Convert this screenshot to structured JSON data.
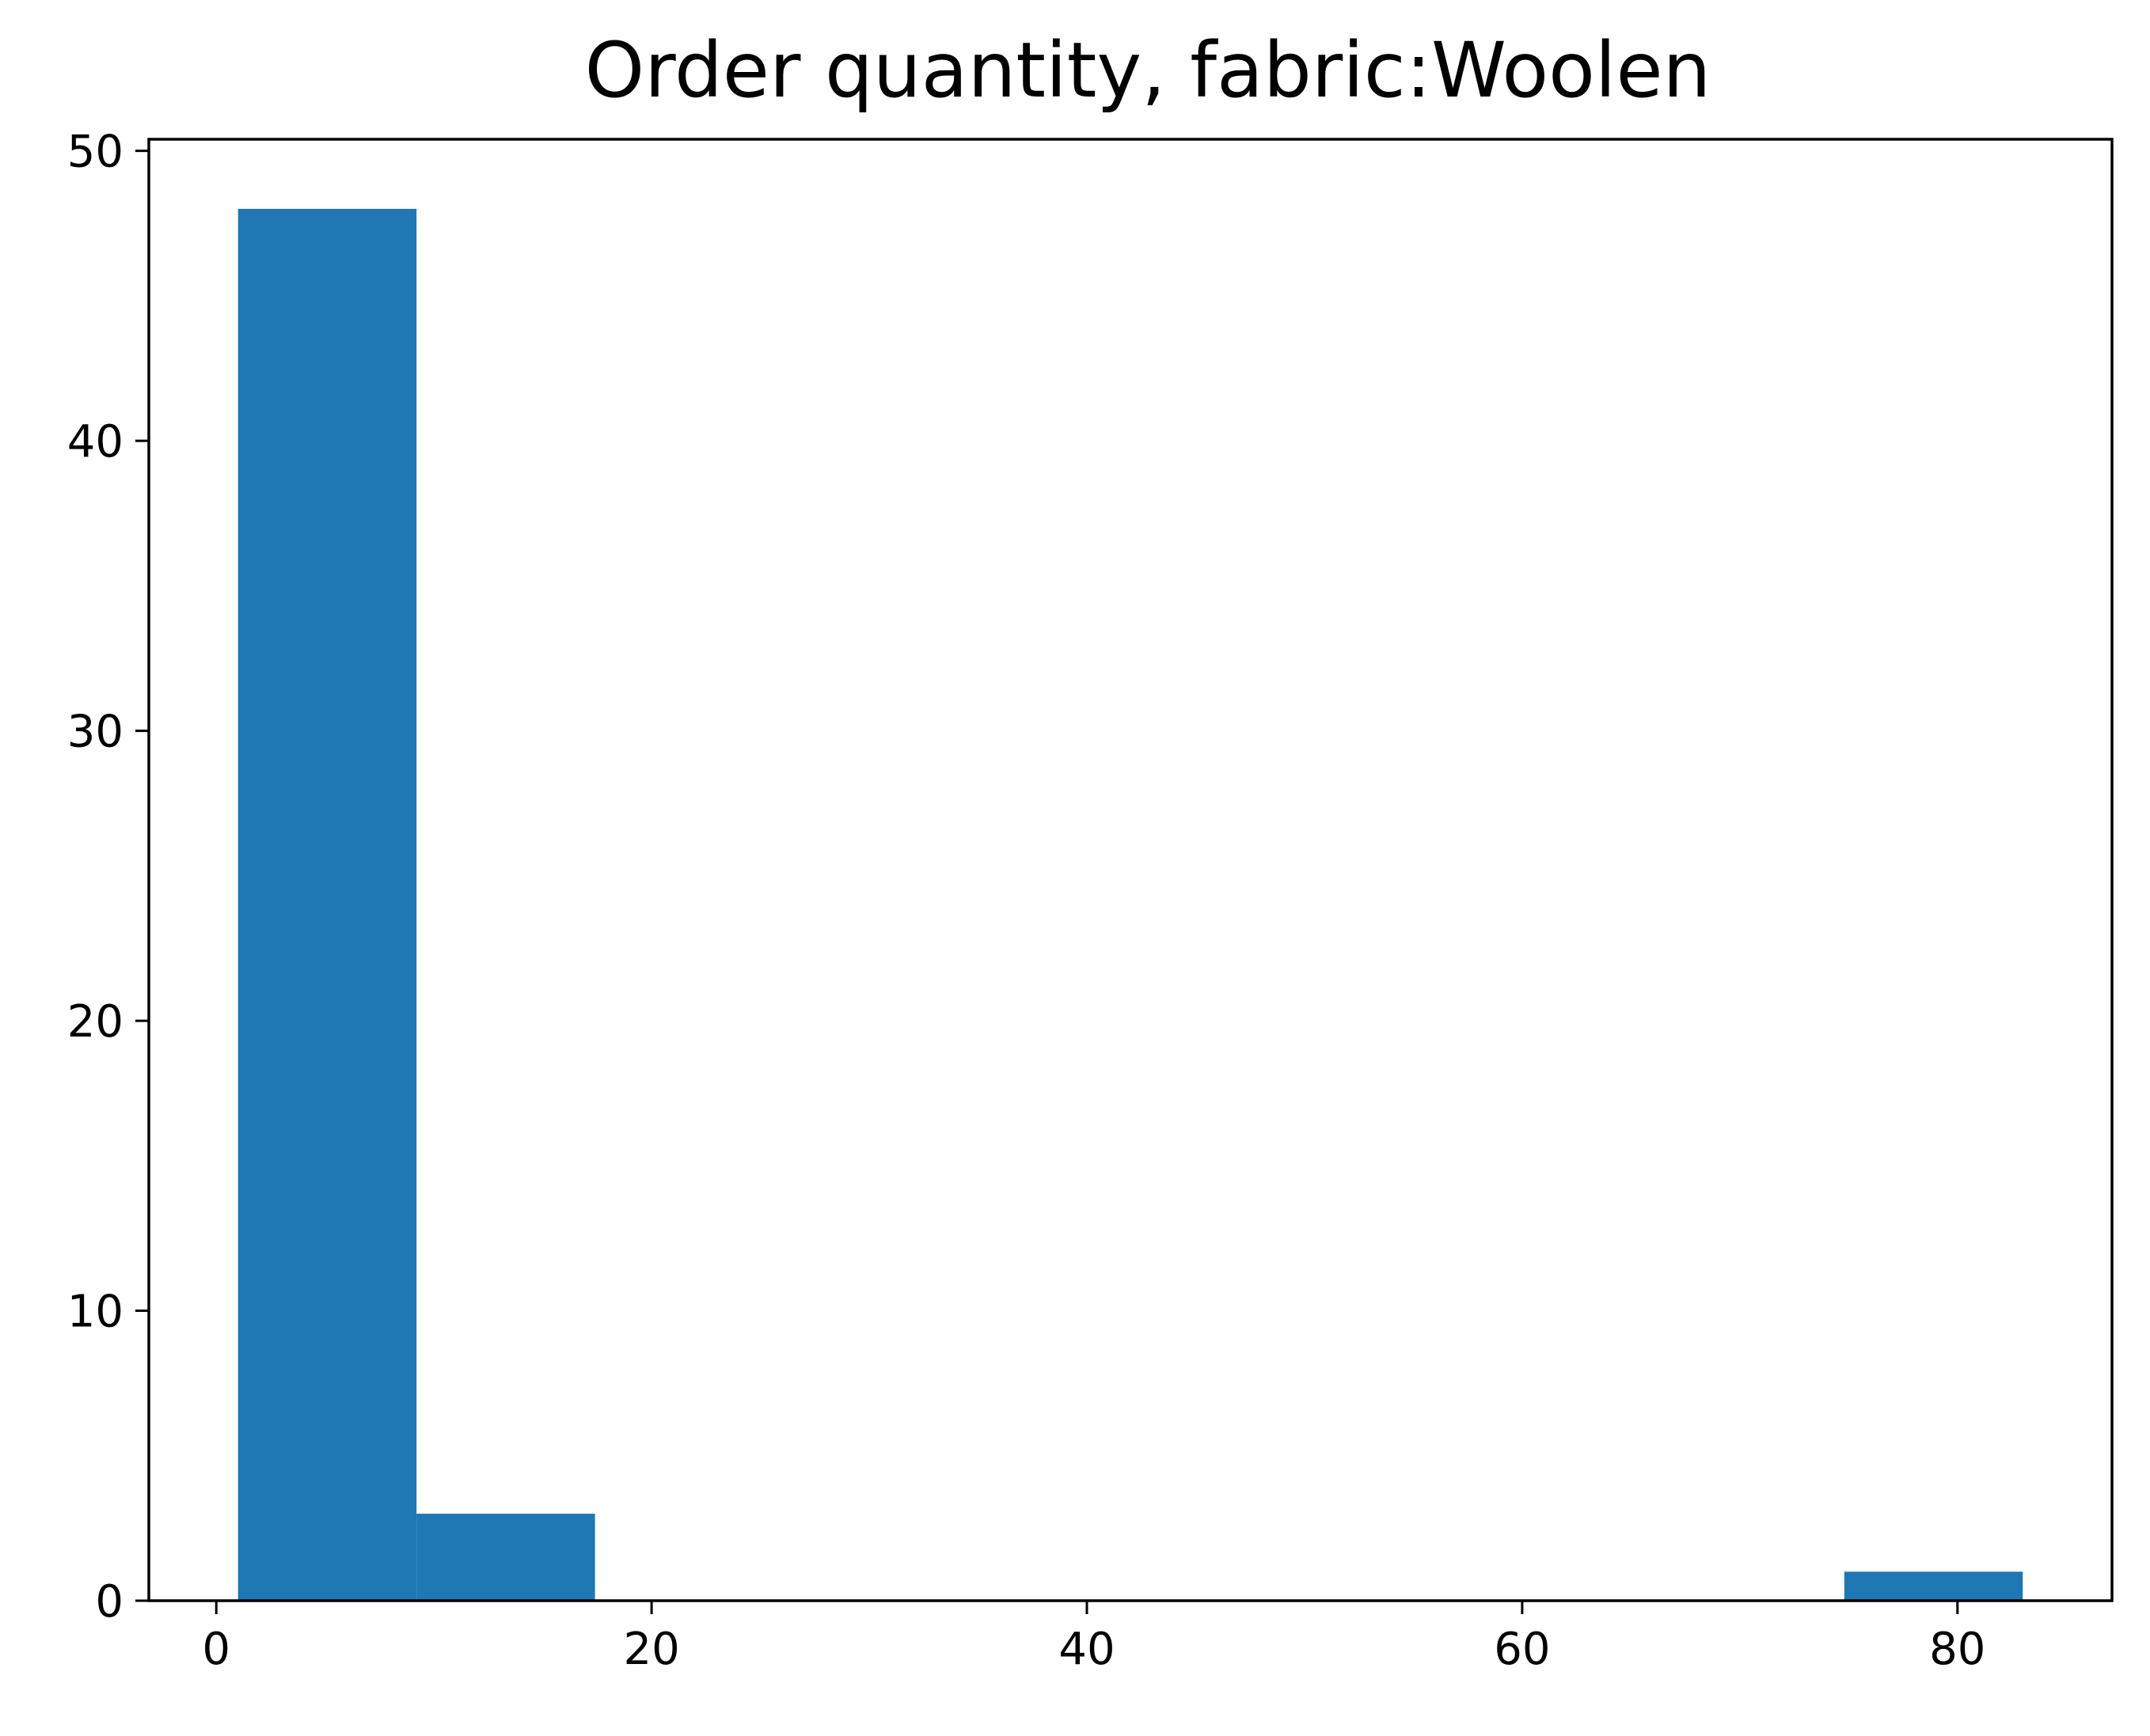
{
  "chart_data": {
    "type": "bar",
    "title": "Order quantity, fabric:Woolen",
    "xlabel": "",
    "ylabel": "",
    "bins": [
      {
        "start": 1.0,
        "end": 9.2,
        "count": 48
      },
      {
        "start": 9.2,
        "end": 17.4,
        "count": 3
      },
      {
        "start": 17.4,
        "end": 25.6,
        "count": 0
      },
      {
        "start": 25.6,
        "end": 33.8,
        "count": 0
      },
      {
        "start": 33.8,
        "end": 42.0,
        "count": 0
      },
      {
        "start": 42.0,
        "end": 50.2,
        "count": 0
      },
      {
        "start": 50.2,
        "end": 58.4,
        "count": 0
      },
      {
        "start": 58.4,
        "end": 66.6,
        "count": 0
      },
      {
        "start": 66.6,
        "end": 74.8,
        "count": 0
      },
      {
        "start": 74.8,
        "end": 83.0,
        "count": 1
      }
    ],
    "xlim": [
      -3.1,
      87.1
    ],
    "ylim": [
      0,
      50.4
    ],
    "xticks": [
      0,
      20,
      40,
      60,
      80
    ],
    "xtick_labels": [
      "0",
      "20",
      "40",
      "60",
      "80"
    ],
    "yticks": [
      0,
      10,
      20,
      30,
      40,
      50
    ],
    "ytick_labels": [
      "0",
      "10",
      "20",
      "30",
      "40",
      "50"
    ],
    "grid": false,
    "legend": "none",
    "bar_color": "#1f77b4"
  }
}
